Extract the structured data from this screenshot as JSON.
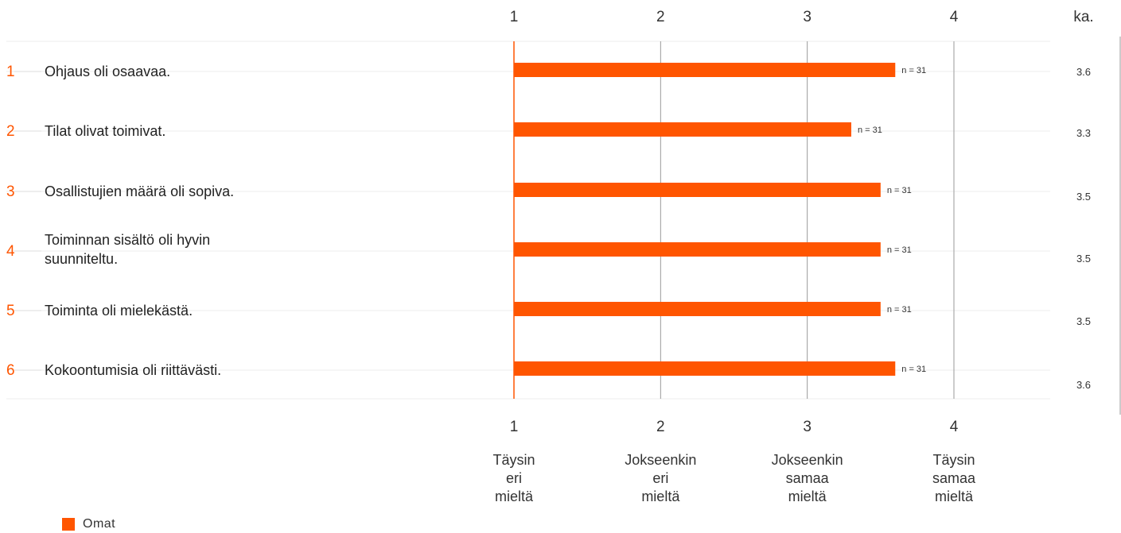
{
  "chart_data": {
    "type": "bar",
    "orientation": "horizontal",
    "x_ticks": [
      "1",
      "2",
      "3",
      "4"
    ],
    "xlim": [
      1,
      4
    ],
    "avg_header": "ka.",
    "scale_labels": [
      [
        "Täysin",
        "eri",
        "mieltä"
      ],
      [
        "Jokseenkin",
        "eri",
        "mieltä"
      ],
      [
        "Jokseenkin",
        "samaa",
        "mieltä"
      ],
      [
        "Täysin",
        "samaa",
        "mieltä"
      ]
    ],
    "rows": [
      {
        "num": "1",
        "label": [
          "Ohjaus oli osaavaa."
        ],
        "value": 3.6,
        "n": "n = 31",
        "avg": "3.6"
      },
      {
        "num": "2",
        "label": [
          "Tilat olivat toimivat."
        ],
        "value": 3.3,
        "n": "n = 31",
        "avg": "3.3"
      },
      {
        "num": "3",
        "label": [
          "Osallistujien määrä oli sopiva."
        ],
        "value": 3.5,
        "n": "n = 31",
        "avg": "3.5"
      },
      {
        "num": "4",
        "label": [
          "Toiminnan sisältö oli hyvin",
          "suunniteltu."
        ],
        "value": 3.5,
        "n": "n = 31",
        "avg": "3.5"
      },
      {
        "num": "5",
        "label": [
          "Toiminta oli mielekästä."
        ],
        "value": 3.5,
        "n": "n = 31",
        "avg": "3.5"
      },
      {
        "num": "6",
        "label": [
          "Kokoontumisia oli riittävästi."
        ],
        "value": 3.6,
        "n": "n = 31",
        "avg": "3.6"
      }
    ],
    "series": [
      {
        "name": "Omat",
        "color": "#ff5500"
      }
    ]
  }
}
